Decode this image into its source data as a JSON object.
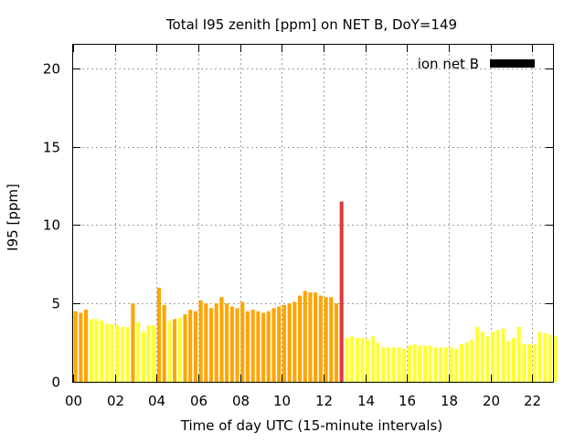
{
  "chart_data": {
    "type": "bar",
    "title": "Total I95 zenith [ppm] on NET B, DoY=149",
    "xlabel": "Time of day UTC (15-minute intervals)",
    "ylabel": "I95 [ppm]",
    "ylim": [
      0,
      21.5
    ],
    "xlim": [
      0,
      23
    ],
    "yticks": [
      0,
      5,
      10,
      15,
      20
    ],
    "xticks": [
      0,
      2,
      4,
      6,
      8,
      10,
      12,
      14,
      16,
      18,
      20,
      22
    ],
    "xtick_labels": [
      "00",
      "02",
      "04",
      "06",
      "08",
      "10",
      "12",
      "14",
      "16",
      "18",
      "20",
      "22"
    ],
    "grid": true,
    "legend": {
      "label": "ion net B",
      "color": "#000000",
      "placement": "top-right"
    },
    "colors": {
      "low": "#ffff33",
      "medium": "#ffa500",
      "high": "#dd3b3b"
    },
    "series": [
      {
        "values": [
          4.5,
          4.4,
          4.6,
          4.0,
          4.0,
          3.9,
          3.7,
          3.7,
          3.6,
          3.5,
          3.5,
          5.0,
          3.8,
          3.2,
          3.6,
          3.6,
          6.0,
          4.9,
          3.9,
          4.0,
          4.1,
          4.3,
          4.6,
          4.5,
          5.2,
          5.0,
          4.7,
          5.0,
          5.4,
          5.0,
          4.8,
          4.7,
          5.1,
          4.5,
          4.6,
          4.5,
          4.4,
          4.5,
          4.7,
          4.8,
          4.9,
          5.0,
          5.1,
          5.5,
          5.8,
          5.7,
          5.7,
          5.5,
          5.4,
          5.4,
          5.0,
          11.5,
          2.8,
          2.9,
          2.8,
          2.8,
          2.7,
          2.9,
          2.5,
          2.2,
          2.2,
          2.2,
          2.2,
          2.1,
          2.3,
          2.4,
          2.3,
          2.3,
          2.3,
          2.2,
          2.2,
          2.2,
          2.2,
          2.1,
          2.4,
          2.5,
          2.7,
          3.5,
          3.2,
          2.9,
          3.2,
          3.3,
          3.4,
          2.6,
          2.8,
          3.5,
          2.4,
          2.4,
          2.4,
          3.2,
          3.1,
          3.0,
          2.9
        ],
        "levels": [
          "medium",
          "medium",
          "medium",
          "low",
          "low",
          "low",
          "low",
          "low",
          "low",
          "low",
          "low",
          "medium",
          "low",
          "low",
          "low",
          "low",
          "medium",
          "medium",
          "low",
          "medium",
          "low",
          "medium",
          "medium",
          "medium",
          "medium",
          "medium",
          "medium",
          "medium",
          "medium",
          "medium",
          "medium",
          "medium",
          "medium",
          "medium",
          "medium",
          "medium",
          "medium",
          "medium",
          "medium",
          "medium",
          "medium",
          "medium",
          "medium",
          "medium",
          "medium",
          "medium",
          "medium",
          "medium",
          "medium",
          "medium",
          "medium",
          "high",
          "low",
          "low",
          "low",
          "low",
          "low",
          "low",
          "low",
          "low",
          "low",
          "low",
          "low",
          "low",
          "low",
          "low",
          "low",
          "low",
          "low",
          "low",
          "low",
          "low",
          "low",
          "low",
          "low",
          "low",
          "low",
          "low",
          "low",
          "low",
          "low",
          "low",
          "low",
          "low",
          "low",
          "low",
          "low",
          "low",
          "low",
          "low",
          "low",
          "low",
          "low"
        ]
      }
    ]
  }
}
